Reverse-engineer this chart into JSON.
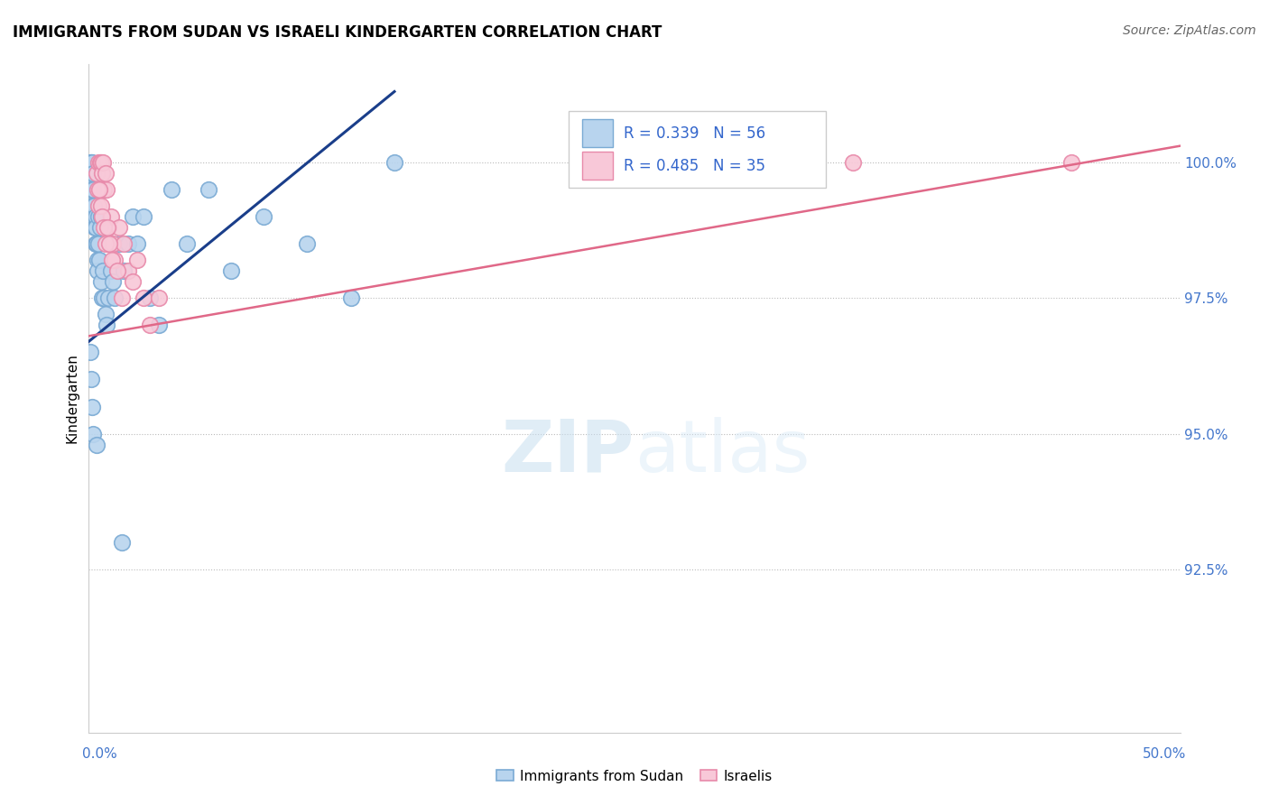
{
  "title": "IMMIGRANTS FROM SUDAN VS ISRAELI KINDERGARTEN CORRELATION CHART",
  "source": "Source: ZipAtlas.com",
  "ylabel": "Kindergarten",
  "xlim": [
    0.0,
    50.0
  ],
  "ylim": [
    89.5,
    101.8
  ],
  "yticks": [
    92.5,
    95.0,
    97.5,
    100.0
  ],
  "ytick_labels": [
    "92.5%",
    "95.0%",
    "97.5%",
    "100.0%"
  ],
  "r_blue": 0.339,
  "n_blue": 56,
  "r_pink": 0.485,
  "n_pink": 35,
  "legend_label_blue": "Immigrants from Sudan",
  "legend_label_pink": "Israelis",
  "blue_color": "#b8d4ee",
  "blue_edge": "#7aaad4",
  "pink_color": "#f8c8d8",
  "pink_edge": "#e88aaa",
  "blue_line_color": "#1a3e8a",
  "pink_line_color": "#e06888",
  "watermark_color": "#ddeef8",
  "blue_points_x": [
    0.05,
    0.07,
    0.08,
    0.1,
    0.12,
    0.13,
    0.15,
    0.16,
    0.18,
    0.2,
    0.22,
    0.25,
    0.28,
    0.3,
    0.3,
    0.32,
    0.35,
    0.38,
    0.4,
    0.42,
    0.45,
    0.48,
    0.5,
    0.55,
    0.58,
    0.6,
    0.65,
    0.7,
    0.75,
    0.8,
    0.9,
    1.0,
    1.1,
    1.2,
    1.4,
    1.6,
    1.8,
    2.0,
    2.2,
    2.5,
    2.8,
    3.2,
    3.8,
    4.5,
    5.5,
    6.5,
    8.0,
    10.0,
    12.0,
    14.0,
    0.06,
    0.09,
    0.14,
    0.2,
    0.35,
    1.5
  ],
  "blue_points_y": [
    99.8,
    100.0,
    99.6,
    100.0,
    99.5,
    99.2,
    99.0,
    100.0,
    99.8,
    99.5,
    99.0,
    99.2,
    98.8,
    99.0,
    98.5,
    98.8,
    98.5,
    98.2,
    98.0,
    99.0,
    98.5,
    98.2,
    98.8,
    99.0,
    97.8,
    97.5,
    98.0,
    97.5,
    97.2,
    97.0,
    97.5,
    98.0,
    97.8,
    97.5,
    98.5,
    98.0,
    98.5,
    99.0,
    98.5,
    99.0,
    97.5,
    97.0,
    99.5,
    98.5,
    99.5,
    98.0,
    99.0,
    98.5,
    97.5,
    100.0,
    96.5,
    96.0,
    95.5,
    95.0,
    94.8,
    93.0
  ],
  "pink_points_x": [
    0.35,
    0.45,
    0.5,
    0.55,
    0.6,
    0.65,
    0.7,
    0.75,
    0.8,
    0.9,
    1.0,
    1.1,
    1.2,
    1.4,
    1.6,
    1.8,
    2.0,
    2.2,
    2.5,
    2.8,
    3.2,
    0.38,
    0.42,
    0.48,
    0.55,
    0.62,
    0.68,
    0.78,
    0.85,
    0.95,
    1.05,
    1.3,
    1.5,
    35.0,
    45.0
  ],
  "pink_points_y": [
    99.8,
    100.0,
    100.0,
    100.0,
    99.8,
    100.0,
    99.5,
    99.8,
    99.5,
    98.8,
    99.0,
    98.5,
    98.2,
    98.8,
    98.5,
    98.0,
    97.8,
    98.2,
    97.5,
    97.0,
    97.5,
    99.5,
    99.2,
    99.5,
    99.2,
    99.0,
    98.8,
    98.5,
    98.8,
    98.5,
    98.2,
    98.0,
    97.5,
    100.0,
    100.0
  ],
  "blue_line_x": [
    0.0,
    14.0
  ],
  "blue_line_y": [
    96.7,
    101.3
  ],
  "pink_line_x": [
    0.0,
    50.0
  ],
  "pink_line_y": [
    96.8,
    100.3
  ]
}
